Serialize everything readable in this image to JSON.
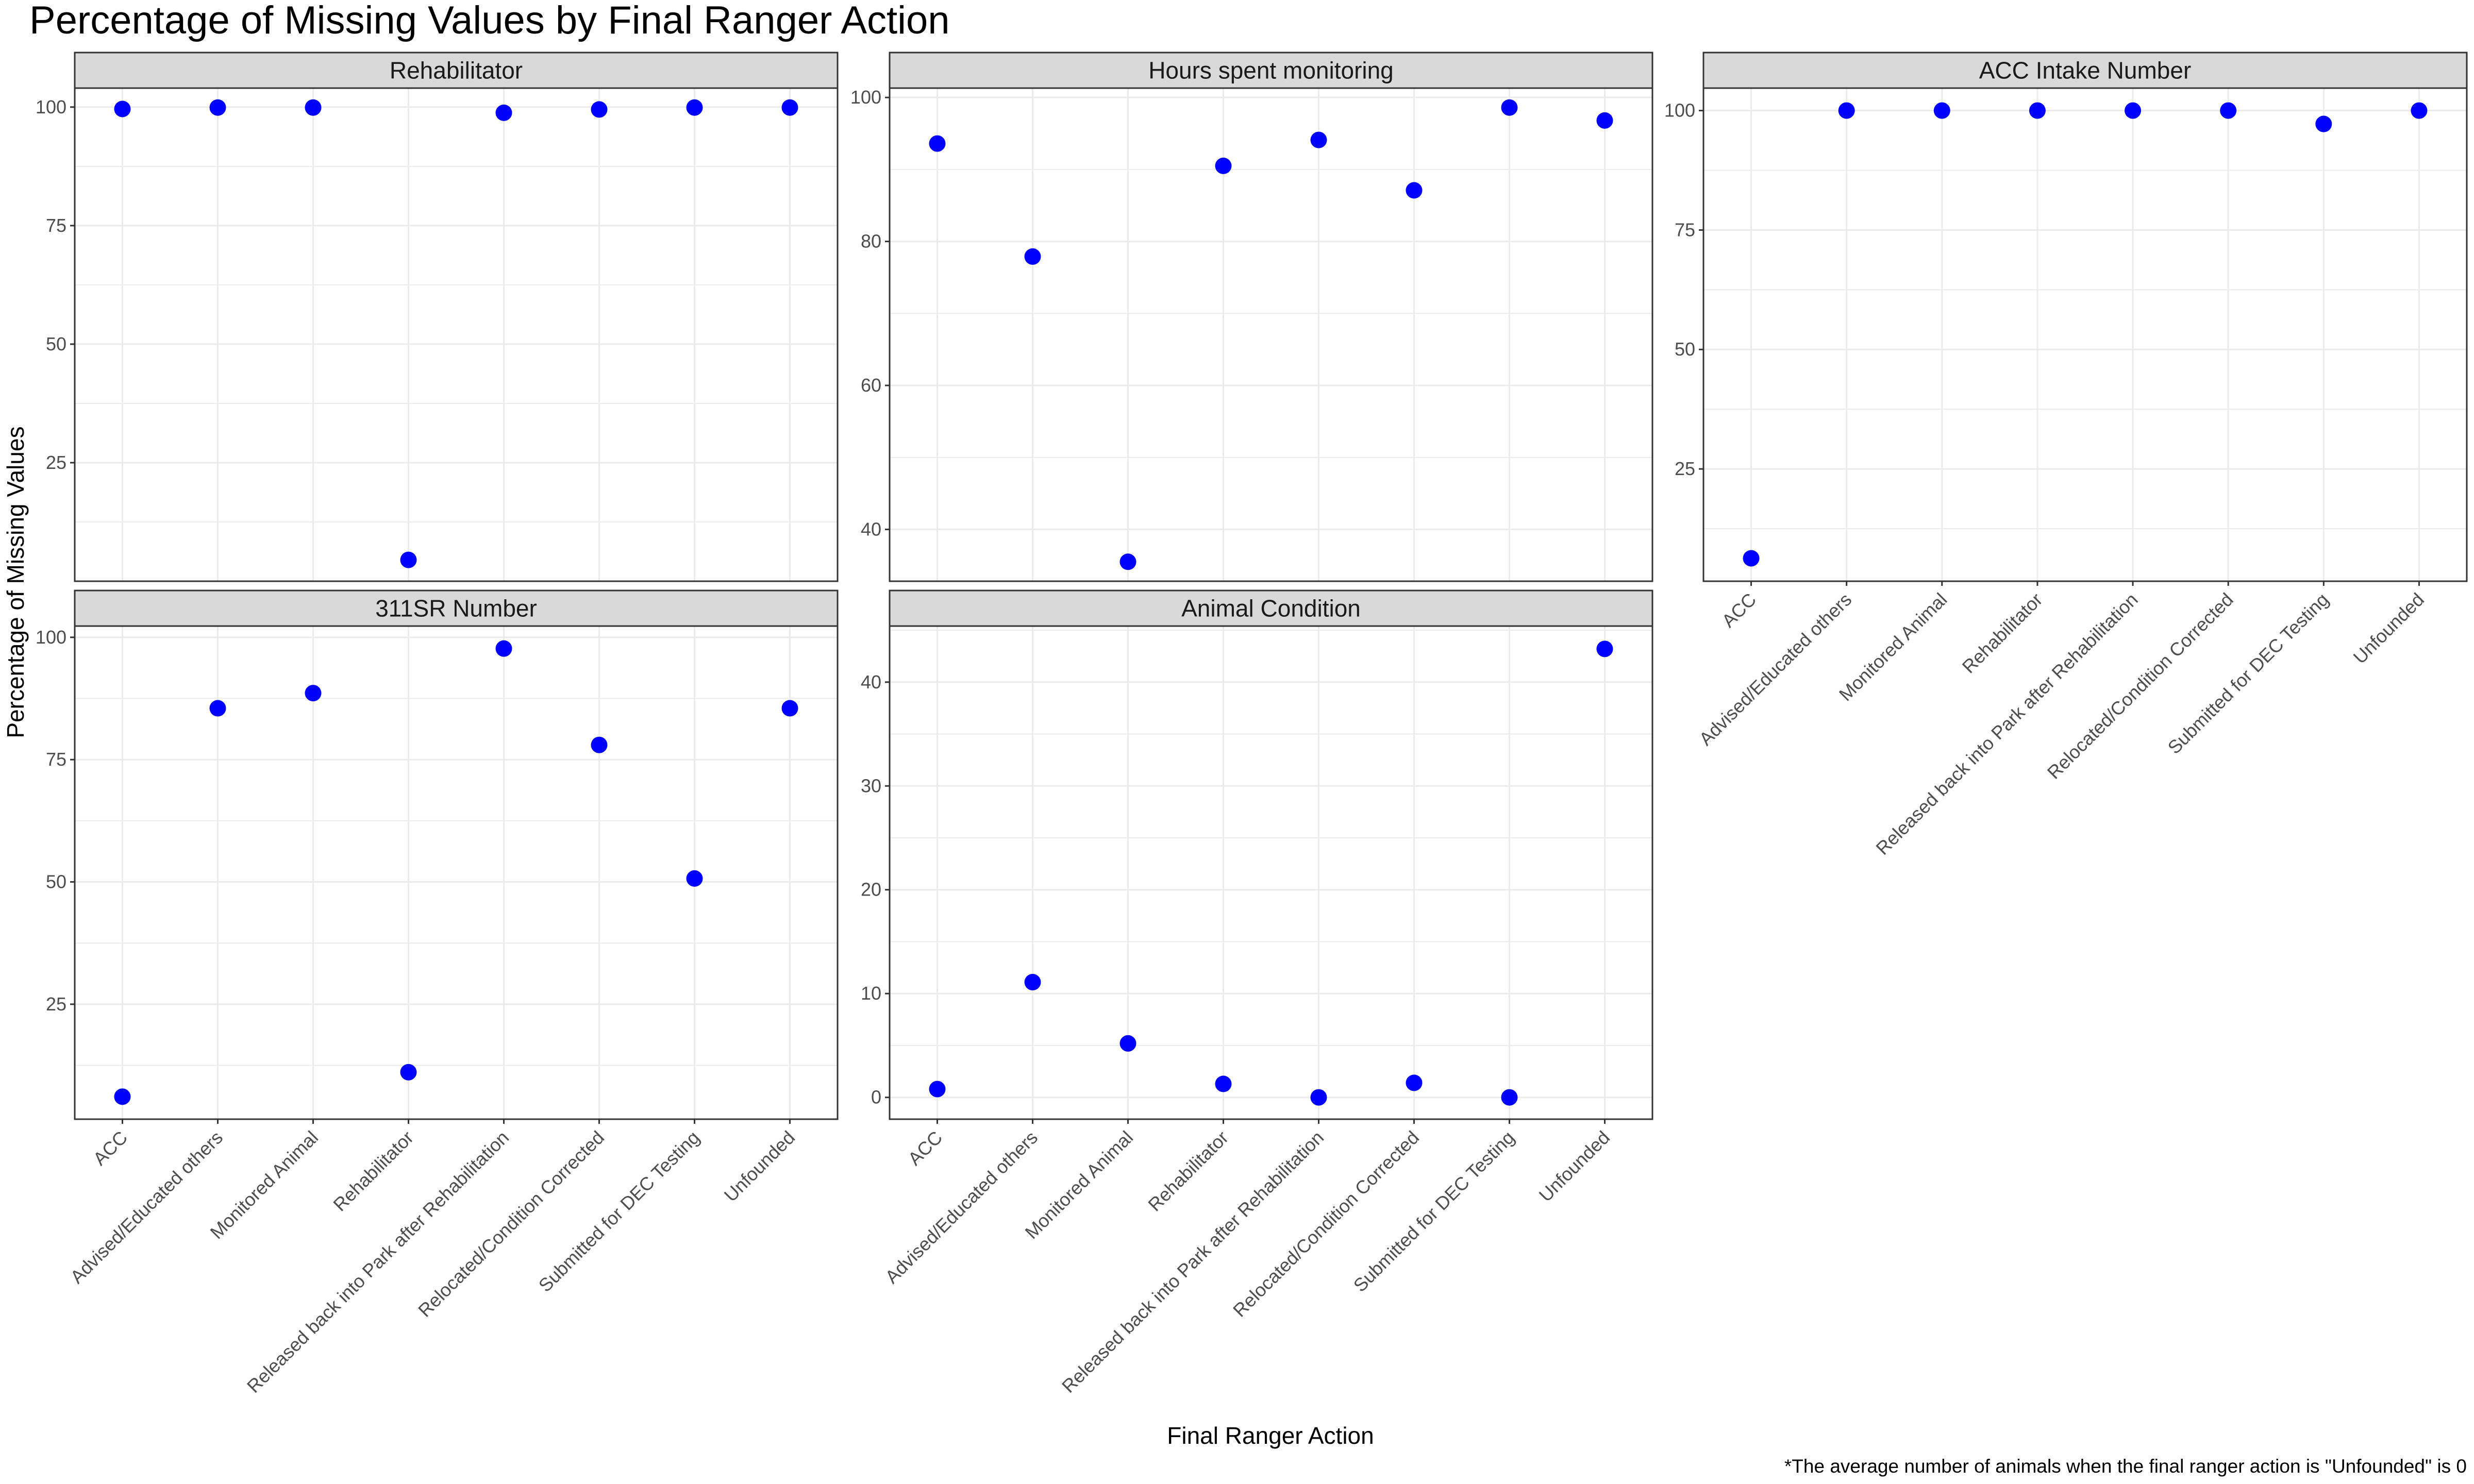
{
  "title": "Percentage of Missing Values by Final Ranger Action",
  "xlabel": "Final Ranger Action",
  "ylabel": "Percentage of Missing Values",
  "caption": "*The average number of animals when the final ranger action is \"Unfounded\" is 0",
  "colors": {
    "point": "#0000ff",
    "strip": "#d9d9d9",
    "grid": "#ebebeb",
    "panel_border": "#333333"
  },
  "chart_data": [
    {
      "type": "scatter",
      "title": "Rehabilitator",
      "categories": [
        "ACC",
        "Advised/Educated others",
        "Monitored Animal",
        "Rehabilitator",
        "Released back into Park after Rehabilitation",
        "Relocated/Condition Corrected",
        "Submitted for DEC Testing",
        "Unfounded"
      ],
      "values": [
        99.6,
        99.9,
        99.9,
        4.5,
        98.8,
        99.5,
        99.9,
        99.9
      ],
      "ylim": [
        0,
        104
      ],
      "yticks": [
        25,
        50,
        75,
        100
      ]
    },
    {
      "type": "scatter",
      "title": "Hours spent monitoring",
      "categories": [
        "ACC",
        "Advised/Educated others",
        "Monitored Animal",
        "Rehabilitator",
        "Released back into Park after Rehabilitation",
        "Relocated/Condition Corrected",
        "Submitted for DEC Testing",
        "Unfounded"
      ],
      "values": [
        93.6,
        77.9,
        35.5,
        90.5,
        94.1,
        87.1,
        98.6,
        96.8
      ],
      "ylim": [
        32.8,
        101.3
      ],
      "yticks": [
        40,
        60,
        80,
        100
      ]
    },
    {
      "type": "scatter",
      "title": "ACC Intake Number",
      "categories": [
        "ACC",
        "Advised/Educated others",
        "Monitored Animal",
        "Rehabilitator",
        "Released back into Park after Rehabilitation",
        "Relocated/Condition Corrected",
        "Submitted for DEC Testing",
        "Unfounded"
      ],
      "values": [
        6.3,
        100,
        100,
        100,
        100,
        100,
        97.2,
        100
      ],
      "ylim": [
        1.5,
        104.7
      ],
      "yticks": [
        25,
        50,
        75,
        100
      ]
    },
    {
      "type": "scatter",
      "title": "311SR Number",
      "categories": [
        "ACC",
        "Advised/Educated others",
        "Monitored Animal",
        "Rehabilitator",
        "Released back into Park after Rehabilitation",
        "Relocated/Condition Corrected",
        "Submitted for DEC Testing",
        "Unfounded"
      ],
      "values": [
        6.1,
        85.5,
        88.6,
        11.1,
        97.7,
        78.0,
        50.7,
        85.5
      ],
      "ylim": [
        1.5,
        102.3
      ],
      "yticks": [
        25,
        50,
        75,
        100
      ]
    },
    {
      "type": "scatter",
      "title": "Animal Condition",
      "categories": [
        "ACC",
        "Advised/Educated others",
        "Monitored Animal",
        "Rehabilitator",
        "Released back into Park after Rehabilitation",
        "Relocated/Condition Corrected",
        "Submitted for DEC Testing",
        "Unfounded"
      ],
      "values": [
        0.8,
        11.1,
        5.2,
        1.3,
        0.0,
        1.4,
        0.0,
        43.2
      ],
      "ylim": [
        -2.1,
        45.4
      ],
      "yticks": [
        0,
        10,
        20,
        30,
        40
      ]
    }
  ]
}
